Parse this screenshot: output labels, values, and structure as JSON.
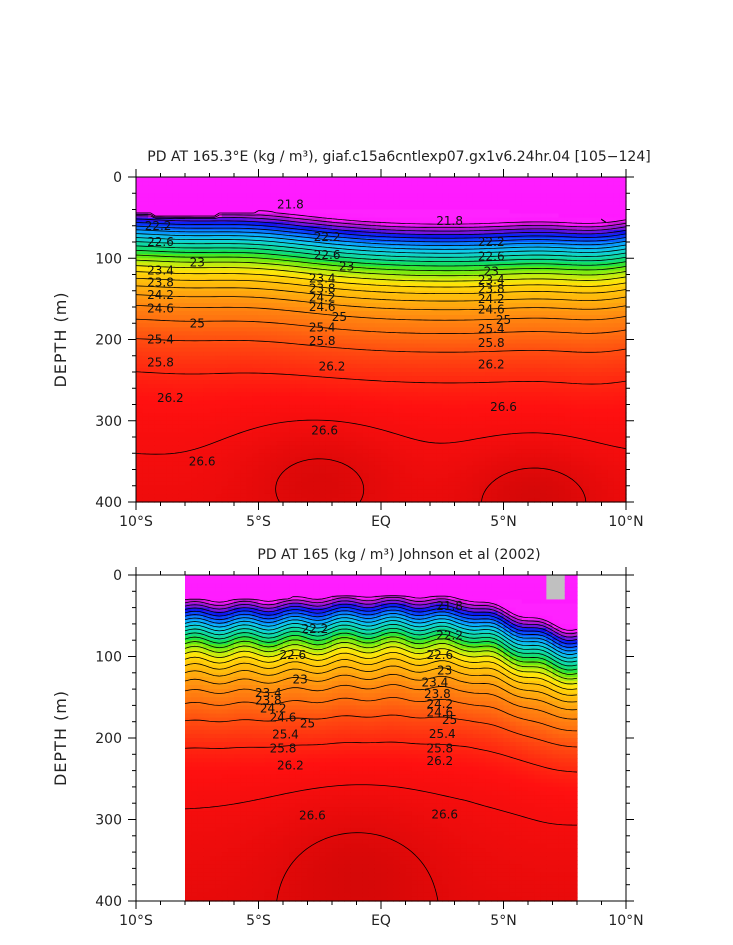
{
  "chart_data": [
    {
      "type": "contour",
      "title": "PD AT 165.3°E (kg / m³), giaf.c15a6cntlexp07.gx1v6.24hr.04 [105−124]",
      "ylabel": "DEPTH (m)",
      "xlabel": "",
      "x_tick_labels": [
        "10°S",
        "5°S",
        "EQ",
        "5°N",
        "10°N"
      ],
      "x_ticks": [
        -10,
        -5,
        0,
        5,
        10
      ],
      "y_tick_labels": [
        "0",
        "100",
        "200",
        "300",
        "400"
      ],
      "y_ticks": [
        0,
        100,
        200,
        300,
        400
      ],
      "xlim": [
        -10,
        10
      ],
      "ylim": [
        0,
        400
      ],
      "y_inverted": true,
      "data_xlim": [
        -10,
        10
      ],
      "contour_interval": 0.2,
      "contour_labels": [
        {
          "text": "21.8",
          "x": -3.7,
          "y": 34
        },
        {
          "text": "21.8",
          "x": 2.8,
          "y": 54
        },
        {
          "text": "22.2",
          "x": -9.1,
          "y": 60
        },
        {
          "text": "22.2",
          "x": -2.2,
          "y": 74
        },
        {
          "text": "22.2",
          "x": 4.5,
          "y": 80
        },
        {
          "text": "22.6",
          "x": -9.0,
          "y": 80
        },
        {
          "text": "22.6",
          "x": -2.2,
          "y": 96
        },
        {
          "text": "22.6",
          "x": 4.5,
          "y": 98
        },
        {
          "text": "23",
          "x": -7.5,
          "y": 105
        },
        {
          "text": "23",
          "x": -1.4,
          "y": 110
        },
        {
          "text": "23",
          "x": 4.5,
          "y": 116
        },
        {
          "text": "23.4",
          "x": -9.0,
          "y": 115
        },
        {
          "text": "23.4",
          "x": -2.4,
          "y": 125
        },
        {
          "text": "23.4",
          "x": 4.5,
          "y": 127
        },
        {
          "text": "23.8",
          "x": -9.0,
          "y": 130
        },
        {
          "text": "23.8",
          "x": -2.4,
          "y": 137
        },
        {
          "text": "23.8",
          "x": 4.5,
          "y": 138
        },
        {
          "text": "24.2",
          "x": -9.0,
          "y": 145
        },
        {
          "text": "24.2",
          "x": -2.4,
          "y": 148
        },
        {
          "text": "24.2",
          "x": 4.5,
          "y": 150
        },
        {
          "text": "24.6",
          "x": -9.0,
          "y": 162
        },
        {
          "text": "24.6",
          "x": -2.4,
          "y": 160
        },
        {
          "text": "24.6",
          "x": 4.5,
          "y": 163
        },
        {
          "text": "25",
          "x": -7.5,
          "y": 180
        },
        {
          "text": "25",
          "x": -1.7,
          "y": 172
        },
        {
          "text": "25",
          "x": 5.0,
          "y": 176
        },
        {
          "text": "25.4",
          "x": -9.0,
          "y": 200
        },
        {
          "text": "25.4",
          "x": -2.4,
          "y": 185
        },
        {
          "text": "25.4",
          "x": 4.5,
          "y": 187
        },
        {
          "text": "25.8",
          "x": -9.0,
          "y": 228
        },
        {
          "text": "25.8",
          "x": -2.4,
          "y": 202
        },
        {
          "text": "25.8",
          "x": 4.5,
          "y": 204
        },
        {
          "text": "26.2",
          "x": -2.0,
          "y": 233
        },
        {
          "text": "26.2",
          "x": 4.5,
          "y": 231
        },
        {
          "text": "26.2",
          "x": -8.6,
          "y": 272
        },
        {
          "text": "26.6",
          "x": 5.0,
          "y": 283
        },
        {
          "text": "26.6",
          "x": -2.3,
          "y": 312
        },
        {
          "text": "26.6",
          "x": -7.3,
          "y": 350
        }
      ]
    },
    {
      "type": "contour",
      "title": "PD AT 165 (kg / m³) Johnson et al (2002)",
      "ylabel": "DEPTH (m)",
      "xlabel": "",
      "x_tick_labels": [
        "10°S",
        "5°S",
        "EQ",
        "5°N",
        "10°N"
      ],
      "x_ticks": [
        -10,
        -5,
        0,
        5,
        10
      ],
      "y_tick_labels": [
        "0",
        "100",
        "200",
        "300",
        "400"
      ],
      "y_ticks": [
        0,
        100,
        200,
        300,
        400
      ],
      "xlim": [
        -10,
        10
      ],
      "ylim": [
        0,
        400
      ],
      "y_inverted": true,
      "data_xlim": [
        -8,
        8
      ],
      "contour_interval": 0.2,
      "contour_labels": [
        {
          "text": "21.8",
          "x": 2.8,
          "y": 38
        },
        {
          "text": "22.2",
          "x": -2.7,
          "y": 66
        },
        {
          "text": "22.2",
          "x": 2.8,
          "y": 74
        },
        {
          "text": "22.6",
          "x": -3.6,
          "y": 98
        },
        {
          "text": "22.6",
          "x": 2.4,
          "y": 98
        },
        {
          "text": "23",
          "x": -3.3,
          "y": 128
        },
        {
          "text": "23",
          "x": 2.6,
          "y": 117
        },
        {
          "text": "23.4",
          "x": -4.6,
          "y": 145
        },
        {
          "text": "23.4",
          "x": 2.2,
          "y": 132
        },
        {
          "text": "23.8",
          "x": -4.6,
          "y": 154
        },
        {
          "text": "23.8",
          "x": 2.3,
          "y": 146
        },
        {
          "text": "24.2",
          "x": -4.4,
          "y": 164
        },
        {
          "text": "24.2",
          "x": 2.4,
          "y": 158
        },
        {
          "text": "24.6",
          "x": -4.0,
          "y": 175
        },
        {
          "text": "24.6",
          "x": 2.4,
          "y": 169
        },
        {
          "text": "25",
          "x": -3.0,
          "y": 182
        },
        {
          "text": "25",
          "x": 2.8,
          "y": 178
        },
        {
          "text": "25.4",
          "x": -3.9,
          "y": 196
        },
        {
          "text": "25.4",
          "x": 2.5,
          "y": 195
        },
        {
          "text": "25.8",
          "x": -4.0,
          "y": 213
        },
        {
          "text": "25.8",
          "x": 2.4,
          "y": 213
        },
        {
          "text": "26.2",
          "x": -3.7,
          "y": 234
        },
        {
          "text": "26.2",
          "x": 2.4,
          "y": 228
        },
        {
          "text": "26.6",
          "x": -2.8,
          "y": 295
        },
        {
          "text": "26.6",
          "x": 2.6,
          "y": 294
        }
      ]
    }
  ]
}
